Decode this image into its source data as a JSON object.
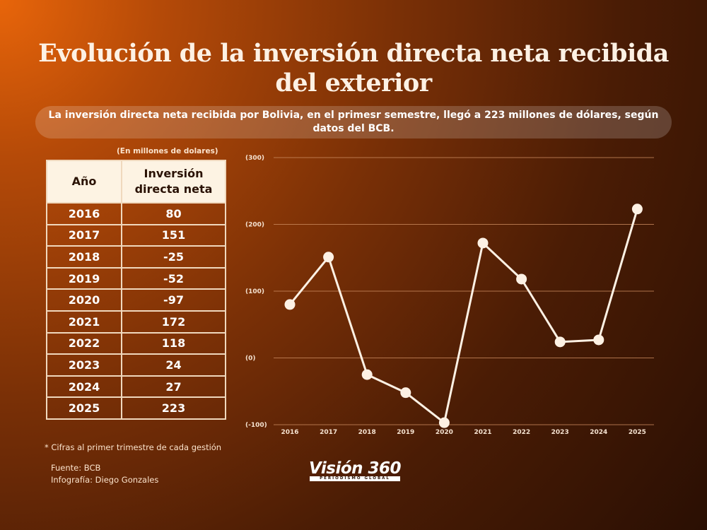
{
  "title": "Evolución de la inversión directa neta recibida del exterior",
  "subtitle": "La inversión directa neta recibida por Bolivia, en el primesr semestre, llegó a 223 millones de dólares, según datos del BCB.",
  "table": {
    "unit_note": "(En millones de dolares)",
    "headers": [
      "Año",
      "Inversión directa neta"
    ],
    "rows": [
      [
        "2016",
        "80"
      ],
      [
        "2017",
        "151"
      ],
      [
        "2018",
        "-25"
      ],
      [
        "2019",
        "-52"
      ],
      [
        "2020",
        "-97"
      ],
      [
        "2021",
        "172"
      ],
      [
        "2022",
        "118"
      ],
      [
        "2023",
        "24"
      ],
      [
        "2024",
        "27"
      ],
      [
        "2025",
        "223"
      ]
    ]
  },
  "note": "* Cifras al primer trimestre de cada gestión",
  "source": "Fuente: BCB",
  "credit": "Infografía: Diego Gonzales",
  "logo": {
    "main": "Visión 360",
    "sub": "PERIODISMO GLOBAL"
  },
  "colors": {
    "line": "#fdf1e4",
    "grid": "#c98a5e"
  },
  "chart_data": {
    "type": "line",
    "categories": [
      "2016",
      "2017",
      "2018",
      "2019",
      "2020",
      "2021",
      "2022",
      "2023",
      "2024",
      "2025"
    ],
    "series": [
      {
        "values": [
          80,
          151,
          -25,
          -52,
          -97,
          172,
          118,
          24,
          27,
          223
        ]
      }
    ],
    "ylim": [
      -100,
      300
    ],
    "yticks": [
      -100,
      0,
      100,
      200,
      300
    ],
    "ytick_labels": [
      "(-100)",
      "(0)",
      "(100)",
      "(200)",
      "(300)"
    ],
    "grid": true
  }
}
